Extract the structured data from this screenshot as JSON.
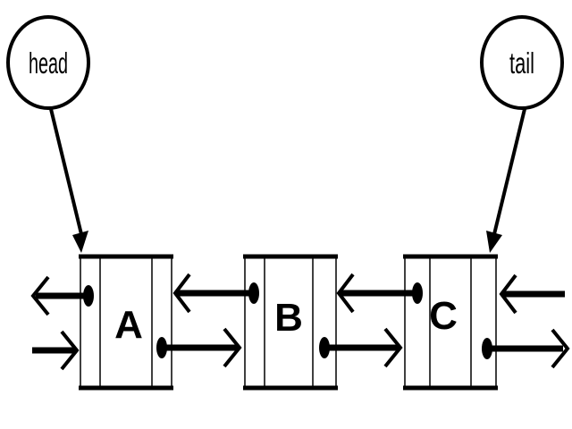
{
  "pointers": {
    "head": "head",
    "tail": "tail"
  },
  "nodes": [
    {
      "label": "A"
    },
    {
      "label": "B"
    },
    {
      "label": "C"
    }
  ],
  "colors": {
    "stroke": "#000000",
    "background": "#ffffff"
  }
}
